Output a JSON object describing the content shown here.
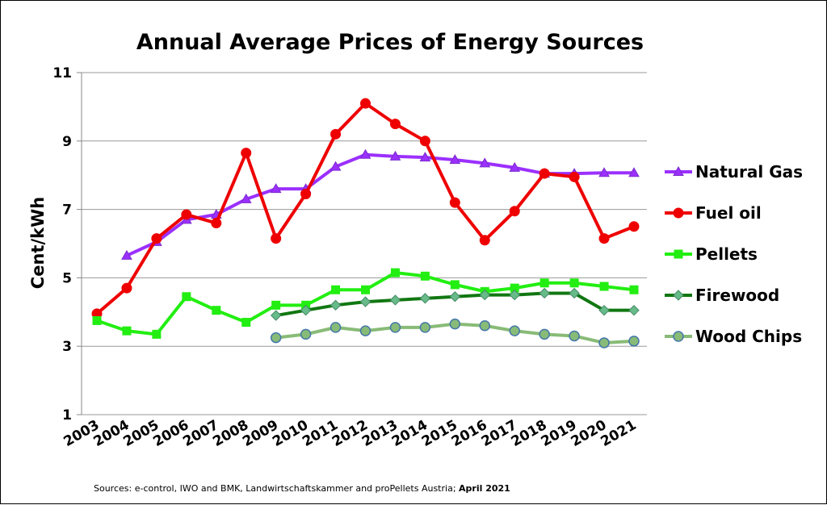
{
  "chart_data": {
    "type": "line",
    "title": "Annual Average Prices of Energy Sources",
    "ylabel": "Cent/kWh",
    "xlabel": "",
    "ylim": [
      1,
      11
    ],
    "yticks": [
      1,
      3,
      5,
      7,
      9,
      11
    ],
    "grid": true,
    "legend_position": "right",
    "categories": [
      "2003",
      "2004",
      "2005",
      "2006",
      "2007",
      "2008",
      "2009",
      "2010",
      "2011",
      "2012",
      "2013",
      "2014",
      "2015",
      "2016",
      "2017",
      "2018",
      "2019",
      "2020",
      "2021"
    ],
    "series": [
      {
        "name": "Natural Gas",
        "color": "#9b30ff",
        "marker": "triangle",
        "values": [
          null,
          5.65,
          6.05,
          6.7,
          6.85,
          7.3,
          7.6,
          7.6,
          8.25,
          8.6,
          8.55,
          8.52,
          8.45,
          8.35,
          8.22,
          8.05,
          8.05,
          8.07,
          8.07
        ]
      },
      {
        "name": "Fuel oil",
        "color": "#ee0000",
        "marker": "circle",
        "values": [
          3.95,
          4.7,
          6.15,
          6.85,
          6.6,
          8.65,
          6.15,
          7.45,
          9.2,
          10.1,
          9.5,
          9.0,
          7.2,
          6.1,
          6.95,
          8.05,
          7.95,
          6.15,
          6.5
        ]
      },
      {
        "name": "Pellets",
        "color": "#22ee11",
        "marker": "square",
        "values": [
          3.75,
          3.45,
          3.35,
          4.45,
          4.05,
          3.7,
          4.2,
          4.2,
          4.65,
          4.65,
          5.15,
          5.05,
          4.8,
          4.6,
          4.7,
          4.85,
          4.85,
          4.75,
          4.65
        ]
      },
      {
        "name": "Firewood",
        "color": "#117711",
        "marker": "diamond",
        "values": [
          null,
          null,
          null,
          null,
          null,
          null,
          3.9,
          4.05,
          4.2,
          4.3,
          4.35,
          4.4,
          4.45,
          4.5,
          4.5,
          4.55,
          4.55,
          4.05,
          4.05
        ]
      },
      {
        "name": "Wood Chips",
        "color": "#88bb77",
        "marker": "circle-outline",
        "values": [
          null,
          null,
          null,
          null,
          null,
          null,
          3.25,
          3.35,
          3.55,
          3.45,
          3.55,
          3.55,
          3.65,
          3.6,
          3.45,
          3.35,
          3.3,
          3.1,
          3.15
        ]
      }
    ]
  },
  "source_note": {
    "text": "Sources: e-control, IWO and BMK, Landwirtschaftskammer and proPellets Austria; ",
    "bold": "April 2021"
  },
  "colors": {
    "grid": "#999999",
    "axis": "#888888",
    "marker_edge": "#4477aa"
  }
}
